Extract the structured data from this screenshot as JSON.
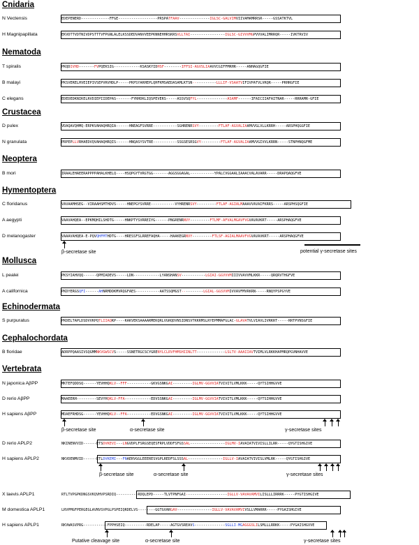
{
  "groups": {
    "cnidaria": "Cnidaria",
    "nematoda": "Nematoda",
    "crustacea": "Crustacea",
    "neoptera": "Neoptera",
    "hymentoptera": "Hymentoptera",
    "mollusca": "Mollusca",
    "echinodermata": "Echinodermata",
    "cephalochordata": "Cephalochordata",
    "vertebrata": "Vertebrata"
  },
  "species": {
    "n_vectensis": "N Vectensis",
    "h_magnipapillata": "H Magnipapillata",
    "t_spiralis": "T spiralis",
    "b_malayi": "B malayi",
    "c_elegans": "C elegans",
    "d_pulex": "D pulex",
    "n_granulata": "N granulata",
    "b_mori": "B mori",
    "c_floridanus": "C floridanus",
    "a_aegypti": "A aegypti",
    "d_melanogaster": "D melanogaster",
    "l_pealei": "L pealei",
    "a_californica": "A californica",
    "s_purpuratus": "S purpuratus",
    "b_floridae": "B floridae",
    "n_japonica": "N japonica AβPP",
    "d_rerio_abpp": "D rerio AβPP",
    "h_sapiens_abpp": "H sapiens AβPP",
    "d_rerio_aplp2": "D rerio APLP2",
    "h_sapiens_aplp2": "H sapiens APLP2",
    "x_laevis_aplp1": "X laevis APLP1",
    "m_domestica_aplp1": "M domestica APLP1",
    "h_sapiens_aplp1": "H sapiens APLP1"
  },
  "sequences": {
    "n_vectensis": [
      [
        "k",
        "EDEPENERD-------------FFGE------------------PRSPA"
      ],
      [
        "r",
        "TFAAV"
      ],
      [
        "k",
        "--------------"
      ],
      [
        "r",
        "IGLSC-GALVIM"
      ],
      [
        "k",
        "VIIVAMAMRRSR-----GSSATKTVL"
      ]
    ],
    "h_magnipapillata": [
      [
        "k",
        "EKVDTTVDTNIVDPSTTTVFPGNLALELKSSDEDVANVVEEPKNNEHHRSKRS"
      ],
      [
        "r",
        "VLLTAI"
      ],
      [
        "k",
        "----------------"
      ],
      [
        "r",
        "IGLSC-GIVVVMG"
      ],
      [
        "k",
        "PVVVALIMRRQR-----IVKTRVIV"
      ]
    ],
    "t_spiralis": [
      [
        "k",
        "PKQD"
      ],
      [
        "r",
        "IVHD"
      ],
      [
        "k",
        "-------"
      ],
      [
        "r",
        "FV"
      ],
      [
        "k",
        "PQEKSIG------------KSASKYID"
      ],
      [
        "r",
        "HSF"
      ],
      [
        "k",
        "--------"
      ],
      [
        "r",
        "IFFSI-AGVSLIA"
      ],
      [
        "k",
        "AVVCGIFFMRHR-----ANHAGQGFIE"
      ]
    ],
    "b_malayi": [
      [
        "k",
        "PKSVERELHVEIEPIVSEPVRVHDLP-----PKPSYARHEPLQHFKMSAEDASAMLKTSN"
      ],
      [
        "r",
        "--"
      ],
      [
        "k",
        "---------"
      ],
      [
        "r",
        "LLLIF-VSAATV"
      ],
      [
        "k",
        "IFIVPATVLVRQR-----PRHRGFIE"
      ]
    ],
    "c_elegans": [
      [
        "k",
        "EDEDEDKNIKELRVDIEPIIDEPAS-------FYRHDKLIQSPEVERS-----ASSVSQ"
      ],
      [
        "r",
        "FYL"
      ],
      [
        "k",
        "--------------"
      ],
      [
        "r",
        "ASAMF"
      ],
      [
        "k",
        "------IFAICIIAFAITNAR-----RRRAMR-GFIE"
      ]
    ],
    "d_pulex": [
      [
        "k",
        "VDAQAVQHMQ-ERPKVAHAQHRQIA------HNEAGFSVRRE-----------SGHRENR"
      ],
      [
        "r",
        "SVY"
      ],
      [
        "k",
        "---------"
      ],
      [
        "r",
        "FTLAF-AGVALIA"
      ],
      [
        "k",
        "AMVVGLVLLKRRH-----ARSPHQGGFIE"
      ]
    ],
    "n_granulata": [
      [
        "k",
        "PRPEP"
      ],
      [
        "r",
        "LLV"
      ],
      [
        "k",
        "RHAEDVQVAHAQHRQIS------HNQASYSVTRE-----------SSGSESRSG"
      ],
      [
        "r",
        "VY"
      ],
      [
        "k",
        "---------"
      ],
      [
        "r",
        "FTLAF-AGVALIA"
      ],
      [
        "k",
        "AMVVGIVVLKRRN-----STNPHNQGFME"
      ]
    ],
    "b_mori": [
      [
        "k",
        "IRAALEHAEERAPPPPAHALKHELQ----HSQPGYTVRGTGG-------AGGSGGAGAL-----------YPALCVGGAALIA"
      ],
      [
        "k",
        "AACVALAVARR-----DRAPQAQGFVE"
      ]
    ],
    "c_floridanus": [
      [
        "k",
        "VAVAAMHSEG--VIRAAHSMTHDVS-----HNEPGYSVRRE-----------VYHRENR"
      ],
      [
        "r",
        "SVY"
      ],
      [
        "k",
        "---------"
      ],
      [
        "r",
        "FTLAF-AGIALM"
      ],
      [
        "k",
        "AAAVVAVA"
      ],
      [
        "k",
        "IFKRRS-----ARSPHSQGFIE"
      ]
    ],
    "a_aegypti": [
      [
        "k",
        "VAAVAHQEA--EPKMQHILSHDTG-----HNKPTYSVRREIYG------PNGRENR"
      ],
      [
        "r",
        "NVY"
      ],
      [
        "k",
        "---------"
      ],
      [
        "r",
        "FTLMF-AFVALMGAVFVG"
      ],
      [
        "k",
        "VAVAVKRT-----ARSPHAQGFVE"
      ]
    ],
    "d_melanogaster": [
      [
        "k",
        "VAAAVAHQEA-E-PQV"
      ],
      [
        "b",
        "QHFMT"
      ],
      [
        "k",
        "HDTG----HRESSFSLRREFAQHA-----HAAKEGR"
      ],
      [
        "r",
        "NVY"
      ],
      [
        "k",
        "---------"
      ],
      [
        "r",
        "FTLSF-AGIALMAAVFVG"
      ],
      [
        "k",
        "VAVAVKRT-----ARSPHAQGFVE"
      ]
    ],
    "l_pealei": [
      [
        "k",
        "PKSYIAHVQQ------QPMIADEVS-----LDN------------LYANSHAN"
      ],
      [
        "r",
        "SV"
      ],
      [
        "k",
        "-----------"
      ],
      [
        "r",
        "LGIAI-GGVVVM"
      ],
      [
        "k",
        "IIIVVAVVMLKKR-----QRQRVTHGFVE"
      ]
    ],
    "a_californica": [
      [
        "k",
        "PKDYERGS"
      ],
      [
        "b",
        "QFI"
      ],
      [
        "k",
        "------"
      ],
      [
        "b",
        "AH"
      ],
      [
        "k",
        "NRMDDKMVRQGFAES-----------AATSSQMGST"
      ],
      [
        "r",
        "--"
      ],
      [
        "k",
        "--------"
      ],
      [
        "r",
        "LGIAL-GGSVVM"
      ],
      [
        "k",
        "IVVAVFMVRKRN-----RNQYPSPGYVE"
      ]
    ],
    "s_purpuratus": [
      [
        "k",
        "PKDELTAPLDSDVVKPQ"
      ],
      [
        "r",
        "TLIIAQ"
      ],
      [
        "k",
        "KP----KAKVEKSAAAARMEKQRLVGRQDVNSIDNSVTKKRMSLRYEPMMAFGLAC-"
      ],
      [
        "r",
        "GLAVA"
      ],
      [
        "k",
        "TVLVIAVLIVRKRT-----RRTPVNSGFIE"
      ]
    ],
    "b_floridae": [
      [
        "k",
        "ADRPPQAASIVSQGMM"
      ],
      [
        "r",
        "NKVGWSCV"
      ],
      [
        "k",
        "S-----SSNETRGCSCYGRE"
      ],
      [
        "r",
        "NYLCLRVFHMSHIINLTT"
      ],
      [
        "k",
        "-------------"
      ],
      [
        "r",
        "LSLTV-AAAIIAV"
      ],
      [
        "k",
        "TVIMLVLRKKHAPMRQPGVNHAVVE"
      ]
    ],
    "n_japonica": [
      [
        "k",
        "MKTEFQDDSQ------YEVHHQ"
      ],
      [
        "r",
        "KLV"
      ],
      [
        "k",
        "--"
      ],
      [
        "r",
        "FFF"
      ],
      [
        "k",
        "-----------GKVGSNKG"
      ],
      [
        "r",
        "AI"
      ],
      [
        "k",
        "---------"
      ],
      [
        "r",
        "IGLMV-GGVVIA"
      ],
      [
        "k",
        "TVIVITLVMLKKK-----QYTSIHHGVVE"
      ]
    ],
    "d_rerio_abpp": [
      [
        "k",
        "MAAEERH---------SEVYH"
      ],
      [
        "r",
        "QKLV"
      ],
      [
        "k",
        "-"
      ],
      [
        "r",
        "FFA"
      ],
      [
        "k",
        "------------EDVSSNKG"
      ],
      [
        "r",
        "AI"
      ],
      [
        "k",
        "---------"
      ],
      [
        "r",
        "IGLMV-GGVVIA"
      ],
      [
        "k",
        "TVIVITLVMLKKK-----QYTSIHHGVVE"
      ]
    ],
    "h_sapiens_abpp": [
      [
        "k",
        "MDAEFRHDSG------YEVHHQ"
      ],
      [
        "r",
        "KLV"
      ],
      [
        "k",
        "--"
      ],
      [
        "r",
        "FFA"
      ],
      [
        "k",
        "-----------EDVGSNKG"
      ],
      [
        "r",
        "AI"
      ],
      [
        "k",
        "---------"
      ],
      [
        "r",
        "IGLMV-GGVVIA"
      ],
      [
        "k",
        "TVIVITLVMLKKK-----QYTSIHHGVVE"
      ]
    ],
    "d_rerio_aplp2": [
      [
        "k",
        "NKINENVVID------ETS"
      ],
      [
        "r",
        "DVKEVI"
      ],
      [
        "k",
        "---"
      ],
      [
        "r",
        "LN"
      ],
      [
        "k",
        "GVDPLFSRGSEQESFRPLVDDFSFGS"
      ],
      [
        "r",
        "SAL"
      ],
      [
        "k",
        "----------------"
      ],
      [
        "r",
        "IGLMV-I"
      ],
      [
        "k",
        "AVAIATVIVISLLILRR-----QYGTISHGIVE"
      ]
    ],
    "h_sapiens_aplp2": [
      [
        "k",
        "NKVDENMVID------ETL"
      ],
      [
        "b",
        "DVKEMI"
      ],
      [
        "k",
        "---"
      ],
      [
        "b",
        "FN"
      ],
      [
        "k",
        "AERVGGLEEERESVGPLREDFSLSSS"
      ],
      [
        "r",
        "AL"
      ],
      [
        "k",
        "----------------"
      ],
      [
        "r",
        "IGLLV-I"
      ],
      [
        "k",
        "AVAIATVIVISLVMLRK-----QYGTISHGIVE"
      ]
    ],
    "x_laevis_aplp1": [
      [
        "k",
        "RTLTVPGPKDNGSVKQVHVP"
      ],
      [
        "k",
        "SRDIQ----------RDQLEPD-----TLVTPNFGAI"
      ],
      [
        "r",
        "-"
      ],
      [
        "k",
        "------------------"
      ],
      [
        "r",
        "IGLLV-VAVAVAMVI"
      ],
      [
        "k",
        "LISLLLIRRRK-----PYGTISHGIVE"
      ]
    ],
    "m_domestica_aplp1": [
      [
        "k",
        "LRVPMGFPERGEGLAVNVSVPGLP"
      ],
      [
        "k",
        "SPEIQRDELVS--------GGTGVAR"
      ],
      [
        "r",
        "GAV"
      ],
      [
        "k",
        "----------------"
      ],
      [
        "r",
        "IGLLV-VAVAVAMVI"
      ],
      [
        "k",
        "VSLLVMARRR-----PYGAISHGIVE"
      ]
    ],
    "h_sapiens_aplp1": [
      [
        "k",
        "RKVWASVPRG-----------FPP"
      ],
      [
        "k",
        "HSEIQ----------RDELAP-----AGTGVSREAV"
      ],
      [
        "b",
        "S"
      ],
      [
        "k",
        "--------------"
      ],
      [
        "b",
        "SGLLI-MG"
      ],
      [
        "r",
        "AGGGSLI"
      ],
      [
        "k",
        "LSMLLLRRKK-----PYGAISHGVVE"
      ]
    ]
  },
  "labels": {
    "dmel_beta": "β-secretase site",
    "dmel_gamma": "potential γ-secretase sites",
    "abpp_beta": "β-secretase site",
    "abpp_alpha": "α-secretase site",
    "abpp_gamma": "γ-secretase sites",
    "aplp2_beta": "β-secretase site",
    "aplp2_alpha": "α-secretase site",
    "aplp2_gamma": "γ-secretase sites",
    "aplp1_cleave": "Putative cleavage site",
    "aplp1_alpha": "α-secretase site",
    "aplp1_gamma": "γ-secretase sites"
  }
}
